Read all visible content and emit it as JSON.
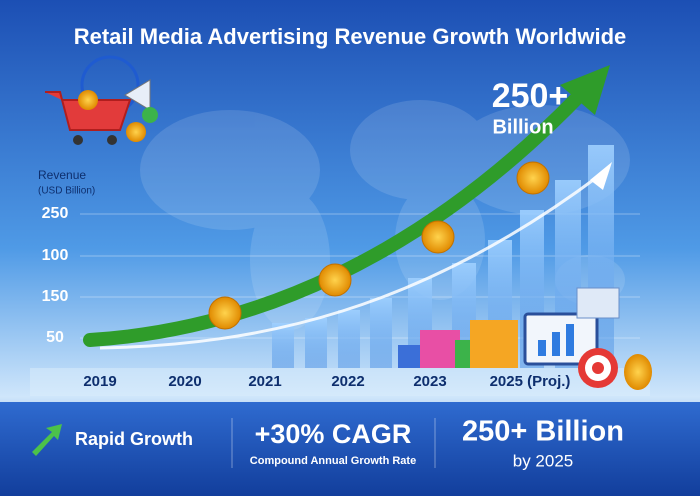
{
  "header": {
    "title": "Retail Media Advertising Revenue Growth Worldwide"
  },
  "callout": {
    "value": "250+",
    "unit": "Billion"
  },
  "axis": {
    "title": "Revenue",
    "subtitle": "(USD Billion)",
    "y_labels": [
      "250",
      "100",
      "150",
      "50"
    ],
    "x_labels": [
      "2019",
      "2020",
      "2021",
      "2022",
      "2023",
      "2025 (Proj.)"
    ]
  },
  "footer": {
    "growth": "Rapid Growth",
    "cagr": "+30% CAGR",
    "cagr_note": "Compound Annual Growth Rate",
    "total": "250+ Billion",
    "total_note": "by 2025"
  }
}
